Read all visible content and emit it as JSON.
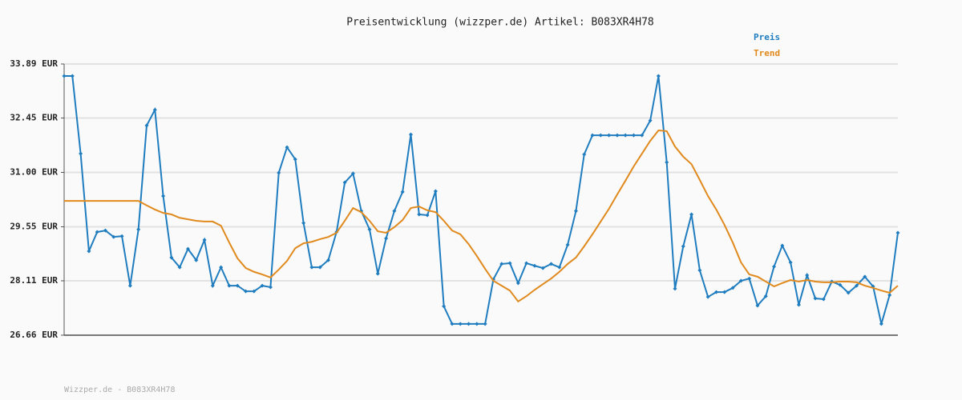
{
  "chart_data": {
    "type": "line",
    "title": "Preisentwicklung (wizzper.de) Artikel: B083XR4H78",
    "footer": "Wizzper.de - B083XR4H78",
    "categories": [
      null,
      null,
      null,
      null,
      null,
      null,
      null,
      null,
      null,
      null,
      null,
      null,
      null,
      null,
      null,
      null,
      null,
      null,
      null,
      null,
      null,
      null,
      null,
      null,
      null,
      null,
      null,
      null,
      null,
      null,
      null,
      null,
      null,
      null,
      null,
      null,
      null,
      null,
      null,
      null,
      null,
      null,
      null,
      null,
      null,
      null,
      null,
      null,
      null,
      null,
      null,
      null,
      null,
      null,
      null,
      null,
      null,
      null,
      null,
      null,
      null,
      null,
      null,
      null,
      null,
      null,
      null,
      null,
      null,
      null,
      null,
      null,
      null,
      null,
      null,
      null,
      null,
      null,
      null,
      null,
      null,
      null,
      null,
      null,
      null,
      null,
      null,
      null,
      null,
      null,
      null,
      null,
      null,
      null,
      null,
      null,
      null,
      null,
      null,
      null,
      null,
      null
    ],
    "series": [
      {
        "name": "Preis",
        "color": "#1f7dbf",
        "markers": true,
        "values": [
          33.57,
          33.57,
          31.5,
          28.9,
          29.41,
          29.45,
          29.28,
          29.3,
          27.98,
          29.48,
          32.25,
          32.67,
          30.37,
          28.73,
          28.47,
          28.96,
          28.66,
          29.2,
          27.98,
          28.47,
          27.98,
          27.98,
          27.83,
          27.83,
          27.98,
          27.94,
          30.99,
          31.67,
          31.35,
          29.65,
          28.47,
          28.47,
          28.66,
          29.41,
          30.73,
          30.97,
          29.97,
          29.48,
          28.3,
          29.24,
          29.97,
          30.48,
          32.01,
          29.88,
          29.86,
          30.5,
          27.43,
          26.96,
          26.96,
          26.96,
          26.96,
          26.96,
          28.15,
          28.56,
          28.58,
          28.05,
          28.58,
          28.51,
          28.45,
          28.56,
          28.47,
          29.07,
          29.97,
          31.48,
          31.99,
          31.99,
          31.99,
          31.99,
          31.99,
          31.99,
          31.99,
          32.38,
          33.57,
          31.27,
          27.9,
          29.03,
          29.88,
          28.39,
          27.68,
          27.81,
          27.81,
          27.92,
          28.11,
          28.17,
          27.45,
          27.7,
          28.49,
          29.05,
          28.6,
          27.47,
          28.26,
          27.64,
          27.62,
          28.09,
          28.0,
          27.79,
          27.98,
          28.22,
          27.96,
          26.96,
          27.73,
          29.39
        ]
      },
      {
        "name": "Trend",
        "color": "#e08a1e",
        "markers": false,
        "values": [
          30.24,
          30.24,
          30.24,
          30.24,
          30.24,
          30.24,
          30.24,
          30.24,
          30.24,
          30.24,
          30.12,
          30.01,
          29.92,
          29.88,
          29.79,
          29.75,
          29.71,
          29.69,
          29.69,
          29.58,
          29.13,
          28.71,
          28.45,
          28.35,
          28.28,
          28.2,
          28.41,
          28.64,
          28.98,
          29.11,
          29.15,
          29.22,
          29.28,
          29.39,
          29.71,
          30.05,
          29.94,
          29.71,
          29.43,
          29.39,
          29.54,
          29.73,
          30.05,
          30.09,
          29.99,
          29.94,
          29.71,
          29.45,
          29.35,
          29.09,
          28.77,
          28.43,
          28.11,
          27.98,
          27.85,
          27.56,
          27.7,
          27.87,
          28.02,
          28.17,
          28.35,
          28.56,
          28.73,
          29.03,
          29.35,
          29.69,
          30.03,
          30.41,
          30.78,
          31.16,
          31.5,
          31.84,
          32.12,
          32.1,
          31.69,
          31.42,
          31.22,
          30.8,
          30.37,
          30.01,
          29.6,
          29.13,
          28.6,
          28.28,
          28.22,
          28.09,
          27.96,
          28.05,
          28.13,
          28.09,
          28.13,
          28.09,
          28.07,
          28.07,
          28.09,
          28.09,
          28.07,
          27.98,
          27.92,
          27.85,
          27.79,
          27.98
        ]
      }
    ],
    "ylim": [
      26.66,
      33.89
    ],
    "yticks": [
      {
        "value": 26.66,
        "label": "26.66 EUR"
      },
      {
        "value": 28.11,
        "label": "28.11 EUR"
      },
      {
        "value": 29.55,
        "label": "29.55 EUR"
      },
      {
        "value": 31.0,
        "label": "31.00 EUR"
      },
      {
        "value": 32.45,
        "label": "32.45 EUR"
      },
      {
        "value": 33.89,
        "label": "33.89 EUR"
      }
    ],
    "grid": true
  }
}
